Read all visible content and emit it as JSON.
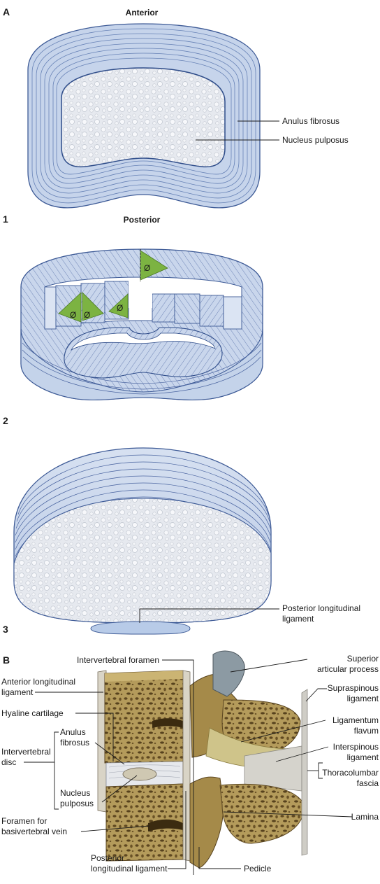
{
  "panels": {
    "a": "A",
    "b": "B",
    "one": "1",
    "two": "2",
    "three": "3"
  },
  "orientation": {
    "anterior": "Anterior",
    "posterior": "Posterior"
  },
  "disc_labels": {
    "anulus": "Anulus fibrosus",
    "nucleus": "Nucleus pulposus",
    "pll_line1": "Posterior longitudinal",
    "pll_line2": "ligament"
  },
  "angle_symbol": "Ø",
  "spine_labels": {
    "intervertebral_foramen": "Intervertebral foramen",
    "all_line1": "Anterior longitudinal",
    "all_line2": "ligament",
    "hyaline": "Hyaline cartilage",
    "ivd_line1": "Intervertebral",
    "ivd_line2": "disc",
    "anulus_line1": "Anulus",
    "anulus_line2": "fibrosus",
    "nucleus_line1": "Nucleus",
    "nucleus_line2": "pulposus",
    "foramen_bv_line1": "Foramen for",
    "foramen_bv_line2": "basivertebral vein",
    "pll_line1": "Posterior",
    "pll_line2": "longitudinal ligament",
    "pedicle": "Pedicle",
    "sap_line1": "Superior",
    "sap_line2": "articular process",
    "supraspinous_line1": "Supraspinous",
    "supraspinous_line2": "ligament",
    "flavum_line1": "Ligamentum",
    "flavum_line2": "flavum",
    "interspinous_line1": "Interspinous",
    "interspinous_line2": "ligament",
    "thoracolumbar_line1": "Thoracolumbar",
    "thoracolumbar_line2": "fascia",
    "lamina": "Lamina"
  },
  "colors": {
    "disc_blue": "#c4d3ea",
    "disc_edge": "#3d5a96",
    "nucleus_white": "#e9ecf1",
    "wedge_green": "#7cb342",
    "bone": "#b29a5a",
    "bone_dark": "#6e5628"
  }
}
